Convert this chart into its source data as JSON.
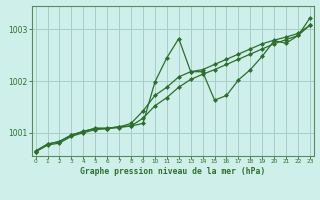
{
  "title": "Graphe pression niveau de la mer (hPa)",
  "background_color": "#cff0ea",
  "grid_color": "#a8ccc8",
  "line_color": "#2d6e2d",
  "x_ticks": [
    0,
    1,
    2,
    3,
    4,
    5,
    6,
    7,
    8,
    9,
    10,
    11,
    12,
    13,
    14,
    15,
    16,
    17,
    18,
    19,
    20,
    21,
    22,
    23
  ],
  "y_ticks": [
    1001,
    1002,
    1003
  ],
  "ylim": [
    1000.55,
    1003.45
  ],
  "xlim": [
    -0.3,
    23.3
  ],
  "series1": [
    1000.65,
    1000.78,
    1000.83,
    1000.95,
    1001.03,
    1001.08,
    1001.08,
    1001.12,
    1001.13,
    1001.18,
    1001.98,
    1002.45,
    1002.82,
    1002.18,
    1002.18,
    1001.63,
    1001.72,
    1002.02,
    1002.22,
    1002.48,
    1002.78,
    1002.73,
    1002.88,
    1003.22
  ],
  "series2": [
    1000.63,
    1000.78,
    1000.83,
    1000.96,
    1001.02,
    1001.09,
    1001.09,
    1001.11,
    1001.18,
    1001.42,
    1001.72,
    1001.88,
    1002.08,
    1002.18,
    1002.22,
    1002.32,
    1002.42,
    1002.52,
    1002.62,
    1002.72,
    1002.79,
    1002.85,
    1002.92,
    1003.08
  ],
  "series3": [
    1000.63,
    1000.76,
    1000.8,
    1000.93,
    1001.0,
    1001.06,
    1001.08,
    1001.1,
    1001.13,
    1001.28,
    1001.52,
    1001.68,
    1001.88,
    1002.03,
    1002.13,
    1002.22,
    1002.32,
    1002.42,
    1002.52,
    1002.62,
    1002.72,
    1002.8,
    1002.88,
    1003.08
  ]
}
